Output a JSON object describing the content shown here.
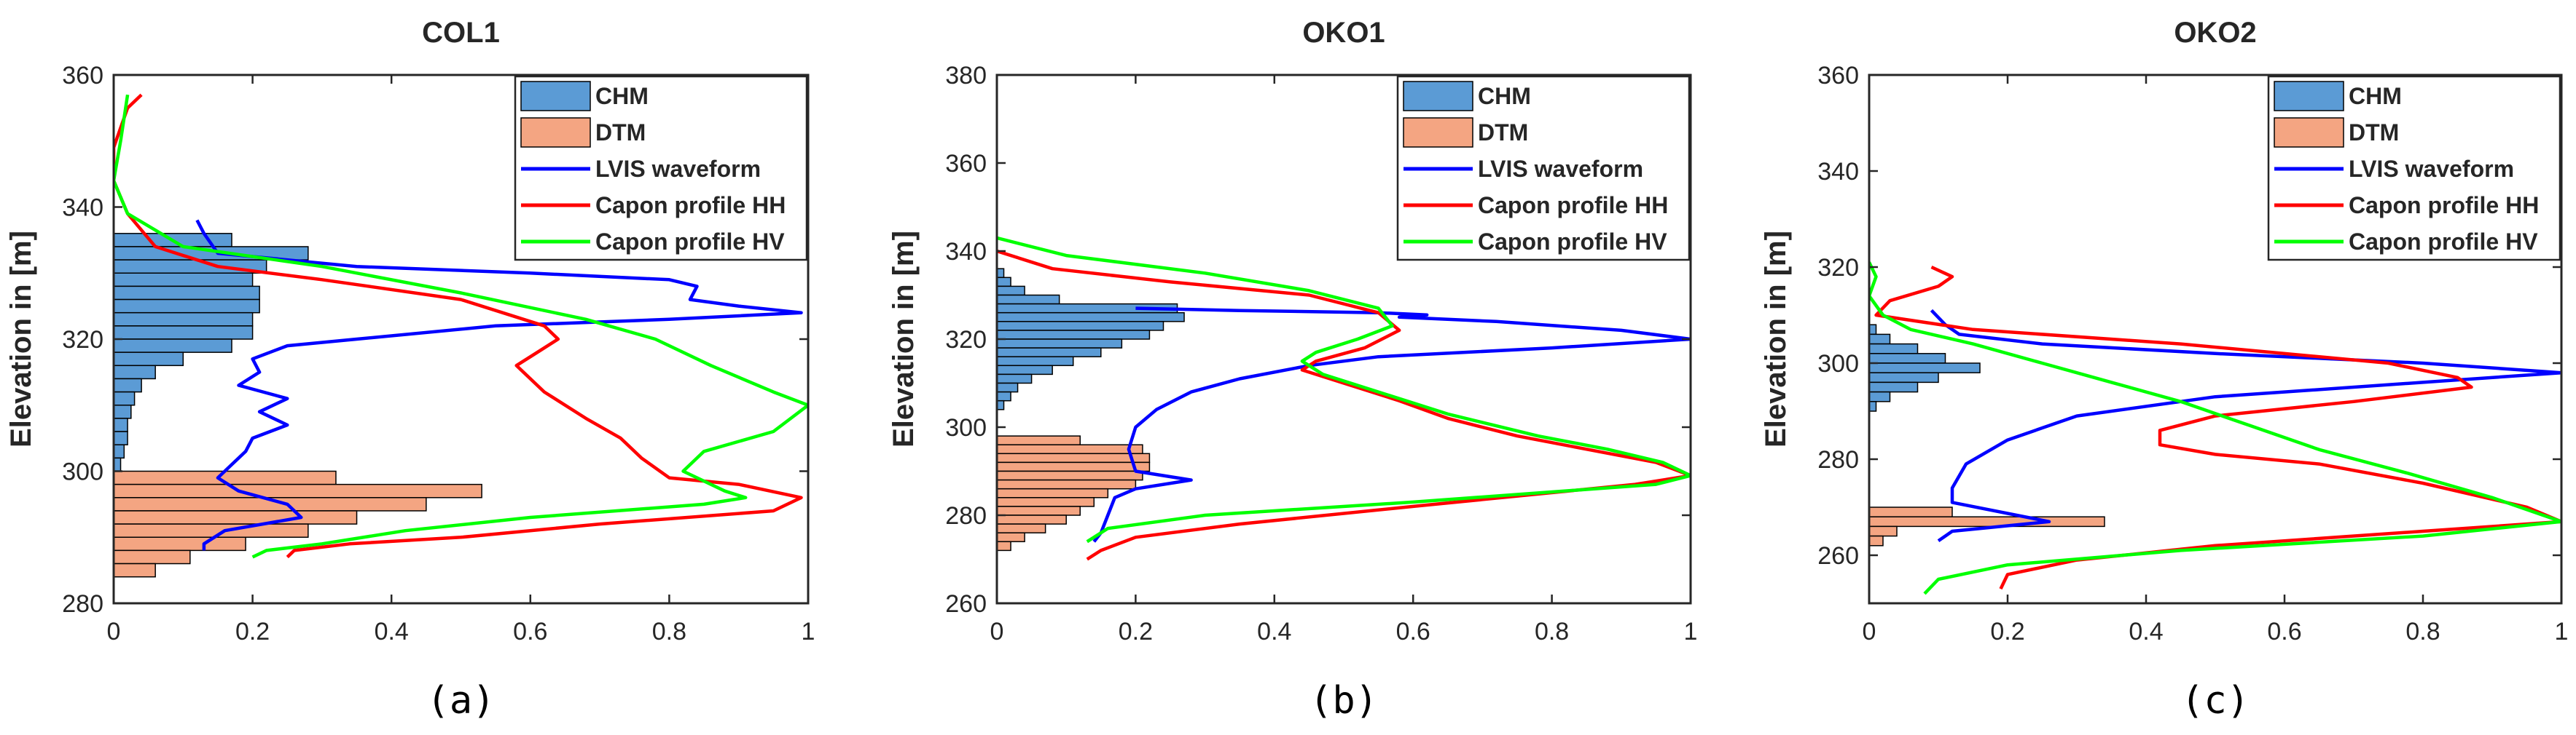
{
  "figure": {
    "legend_entries": [
      "CHM",
      "DTM",
      "LVIS waveform",
      "Capon profile HH",
      "Capon profile HV"
    ],
    "colors": {
      "chm": "#5b9bd5",
      "dtm": "#f4a582",
      "lvis": "#0000ff",
      "capon_hh": "#ff0000",
      "capon_hv": "#00ff00"
    }
  },
  "chart_data": [
    {
      "type": "bar",
      "title": "COL1",
      "caption": "(a)",
      "xlabel": "",
      "ylabel": "Elevation in [m]",
      "xlim": [
        0,
        1
      ],
      "ylim": [
        280,
        360
      ],
      "xticks": [
        0,
        0.2,
        0.4,
        0.6,
        0.8,
        1
      ],
      "xtick_labels": [
        "0",
        "0.2",
        "0.4",
        "0.6",
        "0.8",
        "1"
      ],
      "yticks": [
        280,
        300,
        320,
        340,
        360
      ],
      "legend_position": "top-right",
      "grid": false,
      "chm": {
        "bin_height": 2,
        "bins": [
          [
            335,
            0.17
          ],
          [
            333,
            0.28
          ],
          [
            331,
            0.22
          ],
          [
            329,
            0.2
          ],
          [
            327,
            0.21
          ],
          [
            325,
            0.21
          ],
          [
            323,
            0.2
          ],
          [
            321,
            0.2
          ],
          [
            319,
            0.17
          ],
          [
            317,
            0.1
          ],
          [
            315,
            0.06
          ],
          [
            313,
            0.04
          ],
          [
            311,
            0.03
          ],
          [
            309,
            0.025
          ],
          [
            307,
            0.02
          ],
          [
            305,
            0.02
          ],
          [
            303,
            0.015
          ],
          [
            301,
            0.01
          ]
        ]
      },
      "dtm": {
        "bin_height": 2,
        "bins": [
          [
            299,
            0.32
          ],
          [
            297,
            0.53
          ],
          [
            295,
            0.45
          ],
          [
            293,
            0.35
          ],
          [
            291,
            0.28
          ],
          [
            289,
            0.19
          ],
          [
            287,
            0.11
          ],
          [
            285,
            0.06
          ]
        ]
      },
      "lvis": [
        [
          0.12,
          338
        ],
        [
          0.13,
          336
        ],
        [
          0.15,
          333
        ],
        [
          0.35,
          331
        ],
        [
          0.6,
          330
        ],
        [
          0.8,
          329
        ],
        [
          0.84,
          328
        ],
        [
          0.83,
          326
        ],
        [
          0.9,
          325
        ],
        [
          0.99,
          324
        ],
        [
          0.8,
          323
        ],
        [
          0.55,
          322
        ],
        [
          0.35,
          320
        ],
        [
          0.25,
          319
        ],
        [
          0.2,
          317
        ],
        [
          0.21,
          315
        ],
        [
          0.18,
          313
        ],
        [
          0.25,
          311
        ],
        [
          0.21,
          309
        ],
        [
          0.25,
          307
        ],
        [
          0.2,
          305
        ],
        [
          0.19,
          303
        ],
        [
          0.17,
          301
        ],
        [
          0.15,
          299
        ],
        [
          0.18,
          297
        ],
        [
          0.25,
          295
        ],
        [
          0.27,
          293
        ],
        [
          0.16,
          291
        ],
        [
          0.13,
          289
        ],
        [
          0.13,
          288
        ]
      ],
      "capon_hh": [
        [
          0.04,
          357
        ],
        [
          0.02,
          355
        ],
        [
          0.0,
          349
        ],
        [
          0.0,
          344
        ],
        [
          0.02,
          339
        ],
        [
          0.06,
          334
        ],
        [
          0.15,
          331
        ],
        [
          0.3,
          329
        ],
        [
          0.5,
          326
        ],
        [
          0.62,
          322
        ],
        [
          0.64,
          320
        ],
        [
          0.61,
          318
        ],
        [
          0.58,
          316
        ],
        [
          0.62,
          312
        ],
        [
          0.68,
          308
        ],
        [
          0.73,
          305
        ],
        [
          0.76,
          302
        ],
        [
          0.8,
          299
        ],
        [
          0.9,
          298
        ],
        [
          0.99,
          296
        ],
        [
          0.95,
          294
        ],
        [
          0.7,
          292
        ],
        [
          0.5,
          290
        ],
        [
          0.34,
          289
        ],
        [
          0.26,
          288
        ],
        [
          0.25,
          287
        ]
      ],
      "capon_hv": [
        [
          0.02,
          357
        ],
        [
          0.01,
          350
        ],
        [
          0.0,
          344
        ],
        [
          0.02,
          339
        ],
        [
          0.1,
          334
        ],
        [
          0.3,
          331
        ],
        [
          0.5,
          327
        ],
        [
          0.68,
          323
        ],
        [
          0.78,
          320
        ],
        [
          0.86,
          316
        ],
        [
          0.95,
          312
        ],
        [
          1.0,
          310
        ],
        [
          0.95,
          306
        ],
        [
          0.85,
          303
        ],
        [
          0.82,
          300
        ],
        [
          0.88,
          297
        ],
        [
          0.91,
          296
        ],
        [
          0.85,
          295
        ],
        [
          0.6,
          293
        ],
        [
          0.42,
          291
        ],
        [
          0.3,
          289
        ],
        [
          0.22,
          288
        ],
        [
          0.2,
          287
        ]
      ]
    },
    {
      "type": "bar",
      "title": "OKO1",
      "caption": "(b)",
      "xlabel": "",
      "ylabel": "Elevation in [m]",
      "xlim": [
        0,
        1
      ],
      "ylim": [
        260,
        380
      ],
      "xticks": [
        0,
        0.2,
        0.4,
        0.6,
        0.8,
        1
      ],
      "xtick_labels": [
        "0",
        "0.2",
        "0.4",
        "0.6",
        "0.8",
        "1"
      ],
      "yticks": [
        260,
        280,
        300,
        320,
        340,
        360,
        380
      ],
      "legend_position": "top-right",
      "grid": false,
      "chm": {
        "bin_height": 2,
        "bins": [
          [
            335,
            0.01
          ],
          [
            333,
            0.02
          ],
          [
            331,
            0.04
          ],
          [
            329,
            0.09
          ],
          [
            327,
            0.26
          ],
          [
            325,
            0.27
          ],
          [
            323,
            0.24
          ],
          [
            321,
            0.22
          ],
          [
            319,
            0.18
          ],
          [
            317,
            0.15
          ],
          [
            315,
            0.11
          ],
          [
            313,
            0.08
          ],
          [
            311,
            0.05
          ],
          [
            309,
            0.03
          ],
          [
            307,
            0.02
          ],
          [
            305,
            0.01
          ]
        ]
      },
      "dtm": {
        "bin_height": 2,
        "bins": [
          [
            297,
            0.12
          ],
          [
            295,
            0.21
          ],
          [
            293,
            0.22
          ],
          [
            291,
            0.22
          ],
          [
            289,
            0.21
          ],
          [
            287,
            0.2
          ],
          [
            285,
            0.16
          ],
          [
            283,
            0.14
          ],
          [
            281,
            0.12
          ],
          [
            279,
            0.1
          ],
          [
            277,
            0.07
          ],
          [
            275,
            0.04
          ],
          [
            273,
            0.02
          ]
        ]
      },
      "lvis": [
        [
          0.2,
          327
        ],
        [
          0.35,
          326.5
        ],
        [
          0.55,
          326
        ],
        [
          0.62,
          325.5
        ],
        [
          0.58,
          325
        ],
        [
          0.72,
          324
        ],
        [
          0.9,
          322
        ],
        [
          1.0,
          320
        ],
        [
          0.8,
          318
        ],
        [
          0.55,
          316
        ],
        [
          0.45,
          314
        ],
        [
          0.35,
          311
        ],
        [
          0.28,
          308
        ],
        [
          0.23,
          304
        ],
        [
          0.2,
          300
        ],
        [
          0.19,
          295
        ],
        [
          0.2,
          290
        ],
        [
          0.28,
          288
        ],
        [
          0.2,
          286
        ],
        [
          0.17,
          284
        ],
        [
          0.16,
          280
        ],
        [
          0.15,
          276
        ],
        [
          0.14,
          274
        ]
      ],
      "capon_hh": [
        [
          0.0,
          340
        ],
        [
          0.08,
          336
        ],
        [
          0.25,
          333
        ],
        [
          0.45,
          330
        ],
        [
          0.55,
          326
        ],
        [
          0.58,
          322
        ],
        [
          0.53,
          318
        ],
        [
          0.46,
          315
        ],
        [
          0.44,
          313
        ],
        [
          0.5,
          310
        ],
        [
          0.58,
          306
        ],
        [
          0.65,
          302
        ],
        [
          0.75,
          298
        ],
        [
          0.85,
          295
        ],
        [
          0.95,
          292
        ],
        [
          1.0,
          289
        ],
        [
          0.92,
          287
        ],
        [
          0.6,
          282
        ],
        [
          0.35,
          278
        ],
        [
          0.2,
          275
        ],
        [
          0.15,
          272
        ],
        [
          0.13,
          270
        ]
      ],
      "capon_hv": [
        [
          0.0,
          343
        ],
        [
          0.1,
          339
        ],
        [
          0.3,
          335
        ],
        [
          0.45,
          331
        ],
        [
          0.55,
          327
        ],
        [
          0.57,
          323
        ],
        [
          0.52,
          320
        ],
        [
          0.46,
          317
        ],
        [
          0.44,
          315
        ],
        [
          0.47,
          312
        ],
        [
          0.55,
          308
        ],
        [
          0.65,
          303
        ],
        [
          0.78,
          298
        ],
        [
          0.88,
          295
        ],
        [
          0.96,
          292
        ],
        [
          1.0,
          289
        ],
        [
          0.95,
          287
        ],
        [
          0.6,
          283
        ],
        [
          0.3,
          280
        ],
        [
          0.16,
          277
        ],
        [
          0.13,
          274
        ]
      ]
    },
    {
      "type": "bar",
      "title": "OKO2",
      "caption": "(c)",
      "xlabel": "",
      "ylabel": "Elevation in [m]",
      "xlim": [
        0,
        1
      ],
      "ylim": [
        250,
        360
      ],
      "xticks": [
        0,
        0.2,
        0.4,
        0.6,
        0.8,
        1
      ],
      "xtick_labels": [
        "0",
        "0.2",
        "0.4",
        "0.6",
        "0.8",
        "1"
      ],
      "yticks": [
        260,
        280,
        300,
        320,
        340,
        360
      ],
      "legend_position": "top-right",
      "grid": false,
      "chm": {
        "bin_height": 2,
        "bins": [
          [
            307,
            0.01
          ],
          [
            305,
            0.03
          ],
          [
            303,
            0.07
          ],
          [
            301,
            0.11
          ],
          [
            299,
            0.16
          ],
          [
            297,
            0.1
          ],
          [
            295,
            0.07
          ],
          [
            293,
            0.03
          ],
          [
            291,
            0.01
          ]
        ]
      },
      "dtm": {
        "bin_height": 2,
        "bins": [
          [
            269,
            0.12
          ],
          [
            267,
            0.34
          ],
          [
            265,
            0.04
          ],
          [
            263,
            0.02
          ]
        ]
      },
      "lvis": [
        [
          0.09,
          311
        ],
        [
          0.11,
          308
        ],
        [
          0.13,
          306
        ],
        [
          0.25,
          304
        ],
        [
          0.5,
          302
        ],
        [
          0.8,
          300
        ],
        [
          1.0,
          298
        ],
        [
          0.8,
          296
        ],
        [
          0.5,
          293
        ],
        [
          0.3,
          289
        ],
        [
          0.2,
          284
        ],
        [
          0.14,
          279
        ],
        [
          0.12,
          274
        ],
        [
          0.12,
          271
        ],
        [
          0.26,
          267
        ],
        [
          0.12,
          265
        ],
        [
          0.1,
          263
        ]
      ],
      "capon_hh": [
        [
          0.09,
          320
        ],
        [
          0.12,
          318
        ],
        [
          0.1,
          316
        ],
        [
          0.03,
          313
        ],
        [
          0.01,
          310
        ],
        [
          0.15,
          307
        ],
        [
          0.45,
          304
        ],
        [
          0.75,
          300
        ],
        [
          0.85,
          297
        ],
        [
          0.87,
          295
        ],
        [
          0.7,
          292
        ],
        [
          0.5,
          289
        ],
        [
          0.42,
          286
        ],
        [
          0.42,
          283
        ],
        [
          0.5,
          281
        ],
        [
          0.65,
          279
        ],
        [
          0.8,
          275
        ],
        [
          0.95,
          270
        ],
        [
          1.0,
          267
        ],
        [
          0.8,
          265
        ],
        [
          0.5,
          262
        ],
        [
          0.3,
          259
        ],
        [
          0.2,
          256
        ],
        [
          0.19,
          253
        ]
      ],
      "capon_hv": [
        [
          0.0,
          321
        ],
        [
          0.01,
          318
        ],
        [
          0.0,
          314
        ],
        [
          0.02,
          310
        ],
        [
          0.06,
          307
        ],
        [
          0.15,
          304
        ],
        [
          0.25,
          300
        ],
        [
          0.35,
          296
        ],
        [
          0.45,
          292
        ],
        [
          0.55,
          287
        ],
        [
          0.65,
          282
        ],
        [
          0.78,
          277
        ],
        [
          0.9,
          272
        ],
        [
          1.0,
          267
        ],
        [
          0.8,
          264
        ],
        [
          0.45,
          261
        ],
        [
          0.2,
          258
        ],
        [
          0.1,
          255
        ],
        [
          0.08,
          252
        ]
      ]
    }
  ]
}
